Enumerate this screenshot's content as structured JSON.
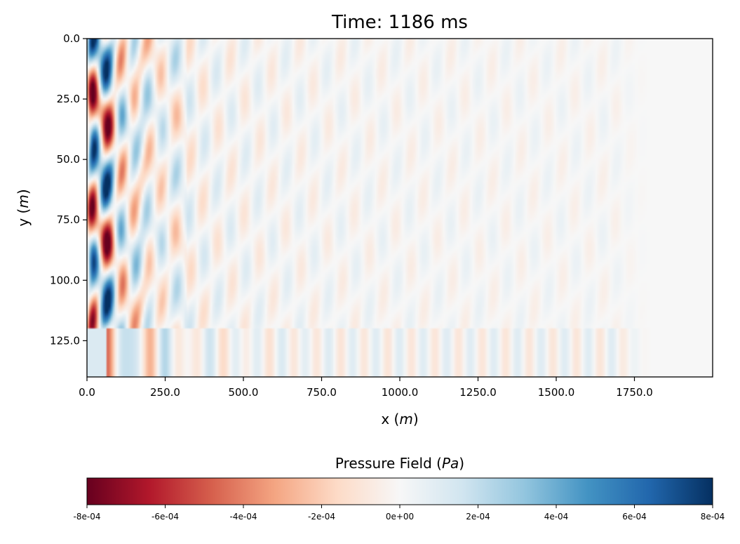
{
  "chart_data": {
    "type": "heatmap",
    "title": "Time: 1186 ms",
    "xlabel": {
      "text": "x (",
      "italic": "m",
      "suffix": ")"
    },
    "ylabel": {
      "text": "y (",
      "italic": "m",
      "suffix": ")"
    },
    "xlim": [
      0,
      2000
    ],
    "ylim": [
      140,
      0
    ],
    "y_inverted": true,
    "xticks": [
      0,
      250,
      500,
      750,
      1000,
      1250,
      1500,
      1750
    ],
    "xtick_labels": [
      "0.0",
      "250.0",
      "500.0",
      "750.0",
      "1000.0",
      "1250.0",
      "1500.0",
      "1750.0"
    ],
    "yticks": [
      0,
      25,
      50,
      75,
      100,
      125
    ],
    "ytick_labels": [
      "0.0",
      "25.0",
      "50.0",
      "75.0",
      "100.0",
      "125.0"
    ],
    "interface_depth": 120,
    "wave_extent_x": 1800,
    "colorbar": {
      "label": {
        "text": "Pressure Field (",
        "italic": "Pa",
        "suffix": ")"
      },
      "colormap": "RdBu",
      "vmin": -0.0008,
      "vmax": 0.0008,
      "ticks": [
        -0.0008,
        -0.0006,
        -0.0004,
        -0.0002,
        0,
        0.0002,
        0.0004,
        0.0006,
        0.0008
      ],
      "tick_labels": [
        "-8e-04",
        "-6e-04",
        "-4e-04",
        "-2e-04",
        "0e+00",
        "2e-04",
        "4e-04",
        "6e-04",
        "8e-04"
      ],
      "stops": [
        "#67001f",
        "#b2182b",
        "#d6604d",
        "#f4a582",
        "#fddbc7",
        "#f7f7f7",
        "#d1e5f0",
        "#92c5de",
        "#4393c3",
        "#2166ac",
        "#053061"
      ]
    }
  }
}
